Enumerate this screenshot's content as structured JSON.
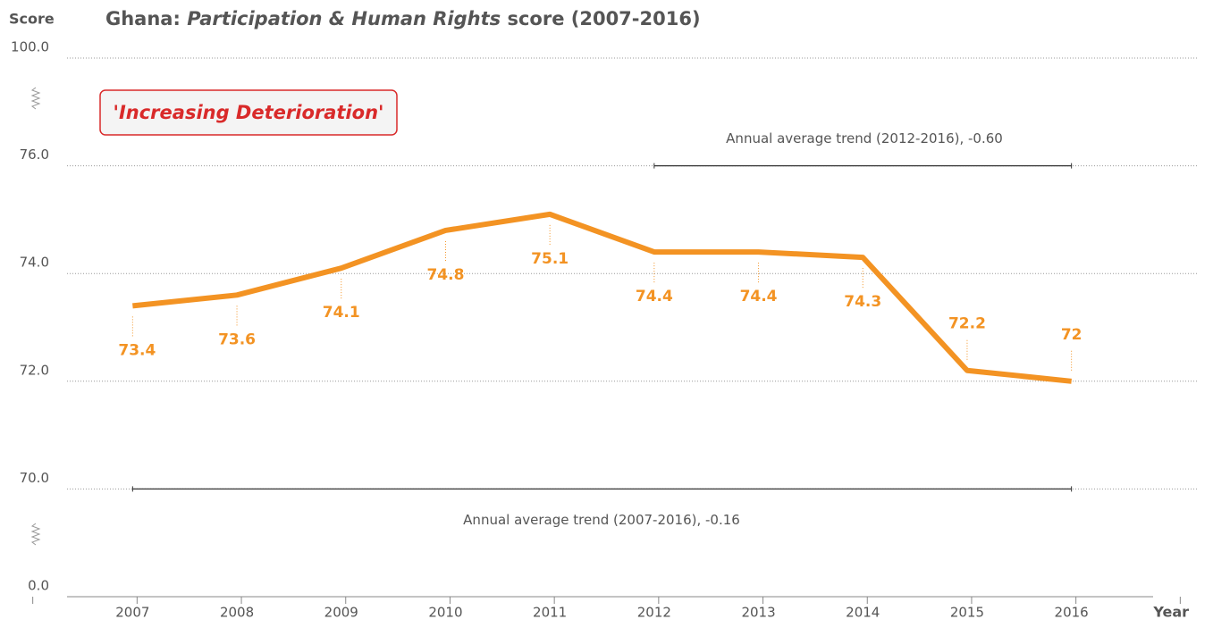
{
  "chart_data": {
    "type": "line",
    "title_parts": [
      "Ghana: ",
      "Participation & Human Rights",
      " score (2007-2016)"
    ],
    "ylabel": "Score",
    "xlabel": "Year",
    "categories": [
      "2007",
      "2008",
      "2009",
      "2010",
      "2011",
      "2012",
      "2013",
      "2014",
      "2015",
      "2016"
    ],
    "series": [
      {
        "name": "Participation & Human Rights",
        "color": "#f39323",
        "values": [
          73.4,
          73.6,
          74.1,
          74.8,
          75.1,
          74.4,
          74.4,
          74.3,
          72.2,
          72.0
        ]
      }
    ],
    "ylim": [
      0,
      100
    ],
    "yticks": [
      {
        "value": 0,
        "label": "0.0"
      },
      {
        "value": 70,
        "label": "70.0"
      },
      {
        "value": 72,
        "label": "72.0"
      },
      {
        "value": 74,
        "label": "74.0"
      },
      {
        "value": 76,
        "label": "76.0"
      },
      {
        "value": 100,
        "label": "100.0"
      }
    ],
    "axis_breaks": true,
    "grid": true,
    "annotation": "'Increasing Deterioration'",
    "trends": [
      {
        "label": "Annual average trend (2012-2016), -0.60",
        "from": "2012",
        "to": "2016"
      },
      {
        "label": "Annual average trend (2007-2016), -0.16",
        "from": "2007",
        "to": "2016"
      }
    ]
  }
}
